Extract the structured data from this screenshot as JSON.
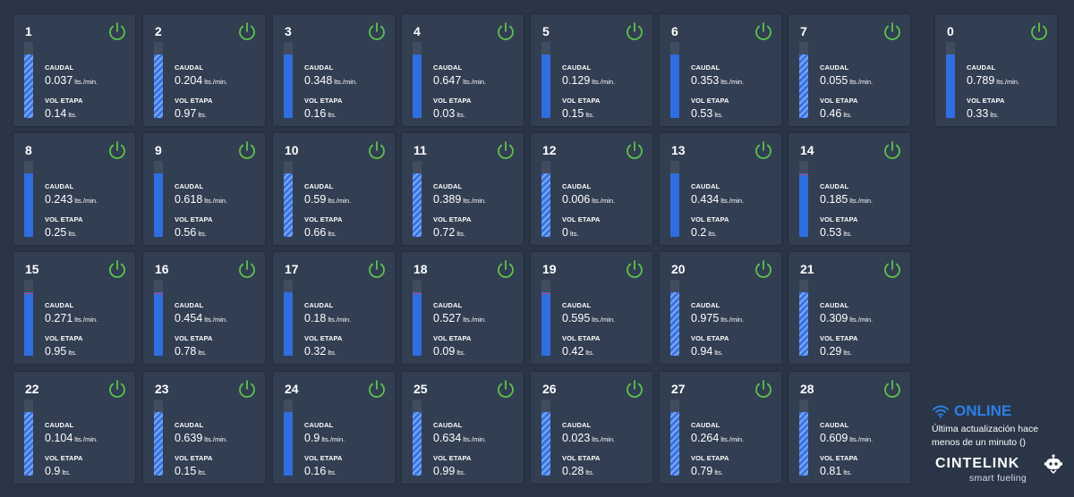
{
  "labels": {
    "caudal": "CAUDAL",
    "vol": "VOL ETAPA",
    "caudal_unit": "lts./min.",
    "vol_unit": "lts."
  },
  "colors": {
    "power_on": "#5ec24c",
    "fill": "#2f6ee0",
    "online": "#2f7fe6",
    "marker": "#c4405a"
  },
  "icons": {
    "power": "power-icon",
    "wifi": "wifi-icon",
    "robot": "robot-logo-icon"
  },
  "dispensers": [
    {
      "num": "1",
      "caudal": "0.037",
      "vol": "0.14",
      "level": 0.84,
      "striped": true,
      "marker": false
    },
    {
      "num": "2",
      "caudal": "0.204",
      "vol": "0.97",
      "level": 0.84,
      "striped": true,
      "marker": false
    },
    {
      "num": "3",
      "caudal": "0.348",
      "vol": "0.16",
      "level": 0.84,
      "striped": false,
      "marker": false
    },
    {
      "num": "4",
      "caudal": "0.647",
      "vol": "0.03",
      "level": 0.84,
      "striped": false,
      "marker": false
    },
    {
      "num": "5",
      "caudal": "0.129",
      "vol": "0.15",
      "level": 0.84,
      "striped": false,
      "marker": false
    },
    {
      "num": "6",
      "caudal": "0.353",
      "vol": "0.53",
      "level": 0.84,
      "striped": false,
      "marker": false
    },
    {
      "num": "7",
      "caudal": "0.055",
      "vol": "0.46",
      "level": 0.84,
      "striped": true,
      "marker": false
    },
    {
      "num": "8",
      "caudal": "0.243",
      "vol": "0.25",
      "level": 0.84,
      "striped": false,
      "marker": false
    },
    {
      "num": "9",
      "caudal": "0.618",
      "vol": "0.56",
      "level": 0.84,
      "striped": false,
      "marker": false
    },
    {
      "num": "10",
      "caudal": "0.59",
      "vol": "0.66",
      "level": 0.84,
      "striped": true,
      "marker": false
    },
    {
      "num": "11",
      "caudal": "0.389",
      "vol": "0.72",
      "level": 0.84,
      "striped": true,
      "marker": false
    },
    {
      "num": "12",
      "caudal": "0.006",
      "vol": "0",
      "level": 0.84,
      "striped": true,
      "marker": false
    },
    {
      "num": "13",
      "caudal": "0.434",
      "vol": "0.2",
      "level": 0.84,
      "striped": false,
      "marker": false
    },
    {
      "num": "14",
      "caudal": "0.185",
      "vol": "0.53",
      "level": 0.84,
      "striped": false,
      "marker": true
    },
    {
      "num": "15",
      "caudal": "0.271",
      "vol": "0.95",
      "level": 0.84,
      "striped": false,
      "marker": true
    },
    {
      "num": "16",
      "caudal": "0.454",
      "vol": "0.78",
      "level": 0.84,
      "striped": false,
      "marker": true
    },
    {
      "num": "17",
      "caudal": "0.18",
      "vol": "0.32",
      "level": 0.84,
      "striped": false,
      "marker": false
    },
    {
      "num": "18",
      "caudal": "0.527",
      "vol": "0.09",
      "level": 0.84,
      "striped": false,
      "marker": true
    },
    {
      "num": "19",
      "caudal": "0.595",
      "vol": "0.42",
      "level": 0.84,
      "striped": false,
      "marker": true
    },
    {
      "num": "20",
      "caudal": "0.975",
      "vol": "0.94",
      "level": 0.84,
      "striped": true,
      "marker": false
    },
    {
      "num": "21",
      "caudal": "0.309",
      "vol": "0.29",
      "level": 0.84,
      "striped": true,
      "marker": false
    },
    {
      "num": "22",
      "caudal": "0.104",
      "vol": "0.9",
      "level": 0.84,
      "striped": true,
      "marker": false
    },
    {
      "num": "23",
      "caudal": "0.639",
      "vol": "0.15",
      "level": 0.84,
      "striped": true,
      "marker": false
    },
    {
      "num": "24",
      "caudal": "0.9",
      "vol": "0.16",
      "level": 0.84,
      "striped": false,
      "marker": false
    },
    {
      "num": "25",
      "caudal": "0.634",
      "vol": "0.99",
      "level": 0.84,
      "striped": true,
      "marker": false
    },
    {
      "num": "26",
      "caudal": "0.023",
      "vol": "0.28",
      "level": 0.84,
      "striped": true,
      "marker": false
    },
    {
      "num": "27",
      "caudal": "0.264",
      "vol": "0.79",
      "level": 0.84,
      "striped": true,
      "marker": false
    },
    {
      "num": "28",
      "caudal": "0.609",
      "vol": "0.81",
      "level": 0.84,
      "striped": true,
      "marker": false
    },
    {
      "num": "0",
      "caudal": "0.789",
      "vol": "0.33",
      "level": 0.84,
      "striped": false,
      "marker": false
    }
  ],
  "status": {
    "online": "ONLINE",
    "update": "Última actualización hace menos de un minuto ()"
  },
  "brand": {
    "name": "CINTELINK",
    "tagline": "smart fueling"
  }
}
